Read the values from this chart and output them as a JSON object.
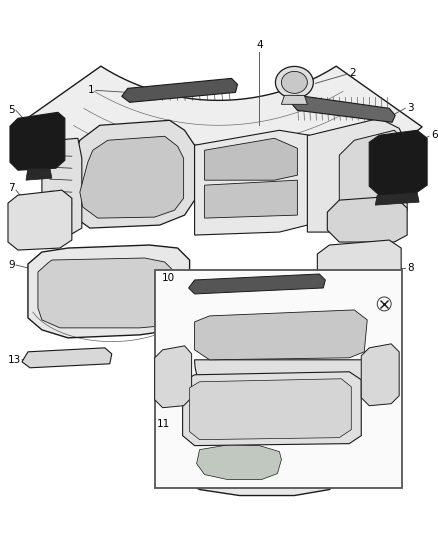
{
  "bg_color": "#ffffff",
  "line_color": "#1a1a1a",
  "dark_fill": "#222222",
  "light_fill": "#f0f0f0",
  "mid_fill": "#d8d8d8",
  "gray_fill": "#b0b0b0",
  "fig_width": 4.38,
  "fig_height": 5.33,
  "dpi": 100,
  "label_fontsize": 7.5,
  "callout_fontsize": 7.0
}
